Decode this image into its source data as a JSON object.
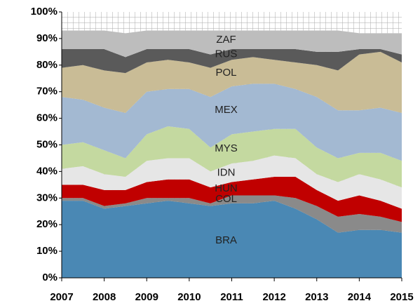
{
  "chart_data": {
    "type": "stacked_area",
    "x": [
      2007,
      2007.5,
      2008,
      2008.5,
      2009,
      2009.5,
      2010,
      2010.5,
      2011,
      2011.5,
      2012,
      2012.5,
      2013,
      2013.5,
      2014,
      2014.5,
      2015
    ],
    "series": [
      {
        "name": "BRA",
        "color": "#4a88b4",
        "values": [
          29,
          29,
          26,
          27,
          28,
          29,
          28,
          27,
          28,
          28,
          29,
          26,
          22,
          17,
          18,
          18,
          17
        ]
      },
      {
        "name": "COL",
        "color": "#8a8a8a",
        "values": [
          1,
          1,
          1,
          1,
          2,
          1,
          2,
          1,
          3,
          3,
          2,
          4,
          5,
          6,
          6,
          5,
          4
        ]
      },
      {
        "name": "HUN",
        "color": "#c00000",
        "values": [
          5,
          5,
          6,
          5,
          6,
          7,
          7,
          6,
          5,
          6,
          7,
          8,
          6,
          6,
          7,
          6,
          5
        ]
      },
      {
        "name": "IDN",
        "color": "#e6e6e6",
        "values": [
          6,
          7,
          6,
          5,
          8,
          8,
          8,
          6,
          7,
          7,
          8,
          7,
          6,
          7,
          8,
          8,
          8
        ]
      },
      {
        "name": "MYS",
        "color": "#c4d9a0",
        "values": [
          9,
          9,
          9,
          7,
          10,
          12,
          11,
          9,
          11,
          11,
          10,
          11,
          10,
          9,
          8,
          10,
          10
        ]
      },
      {
        "name": "MEX",
        "color": "#a3b9d2",
        "values": [
          18,
          16,
          16,
          17,
          16,
          14,
          15,
          19,
          18,
          18,
          17,
          15,
          19,
          18,
          16,
          17,
          18
        ]
      },
      {
        "name": "POL",
        "color": "#c9bc96",
        "values": [
          11,
          13,
          14,
          15,
          11,
          11,
          10,
          11,
          10,
          10,
          9,
          10,
          12,
          15,
          21,
          21,
          19
        ]
      },
      {
        "name": "RUS",
        "color": "#5a5a5a",
        "values": [
          7,
          6,
          8,
          6,
          5,
          4,
          5,
          5,
          4,
          3,
          4,
          5,
          5,
          7,
          2,
          1,
          3
        ]
      },
      {
        "name": "ZAF",
        "color": "#bdbdbd",
        "values": [
          7,
          7,
          7,
          9,
          7,
          7,
          7,
          9,
          7,
          7,
          7,
          7,
          8,
          8,
          6,
          6,
          8
        ]
      }
    ],
    "xlim": [
      2007,
      2015
    ],
    "xticks": [
      2007,
      2008,
      2009,
      2010,
      2011,
      2012,
      2013,
      2014,
      2015
    ],
    "ylim": [
      0,
      100
    ],
    "yticks": [
      {
        "value": 0,
        "label": "0%"
      },
      {
        "value": 10,
        "label": "10%"
      },
      {
        "value": 20,
        "label": "20%"
      },
      {
        "value": 30,
        "label": "30%"
      },
      {
        "value": 40,
        "label": "40%"
      },
      {
        "value": 50,
        "label": "50%"
      },
      {
        "value": 60,
        "label": "60%"
      },
      {
        "value": 70,
        "label": "70%"
      },
      {
        "value": 80,
        "label": "80%"
      },
      {
        "value": 90,
        "label": "90%"
      },
      {
        "value": 100,
        "label": "100%"
      }
    ]
  }
}
